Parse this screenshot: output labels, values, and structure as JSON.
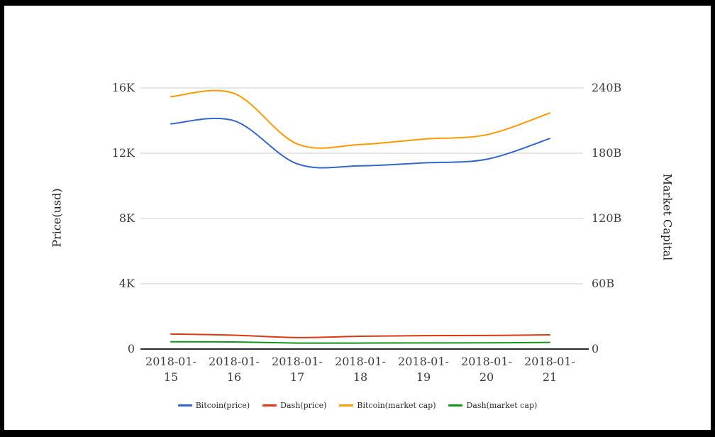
{
  "chart_data": {
    "type": "line",
    "smooth": true,
    "grid": true,
    "legend_position": "bottom",
    "x": [
      "2018-01-15",
      "2018-01-16",
      "2018-01-17",
      "2018-01-18",
      "2018-01-19",
      "2018-01-20",
      "2018-01-21"
    ],
    "left_axis": {
      "label": "Price(usd)",
      "ticks": [
        "0",
        "4K",
        "8K",
        "12K",
        "16K"
      ],
      "min": 0,
      "max": 16000
    },
    "right_axis": {
      "label": "Market Capital",
      "ticks": [
        "0",
        "60B",
        "120B",
        "180B",
        "240B"
      ],
      "min": 0,
      "max": 240
    },
    "series": [
      {
        "name": "Bitcoin(price)",
        "axis": "left",
        "color": "#3366cc",
        "values": [
          13800,
          13990,
          11350,
          11230,
          11410,
          11630,
          12900
        ]
      },
      {
        "name": "Dash(price)",
        "axis": "left",
        "color": "#dc3912",
        "values": [
          920,
          850,
          700,
          780,
          820,
          830,
          870
        ]
      },
      {
        "name": "Bitcoin(market cap)",
        "axis": "right",
        "unit": "B",
        "color": "#ff9900",
        "values": [
          232,
          235,
          188.5,
          188,
          193,
          197,
          217
        ]
      },
      {
        "name": "Dash(market cap)",
        "axis": "right",
        "unit": "B",
        "color": "#109618",
        "values": [
          6.7,
          6.5,
          5.5,
          5.5,
          5.6,
          5.7,
          6.1
        ]
      }
    ],
    "colors": {
      "gridline": "#cccccc",
      "zero_axis": "#2b2b2b",
      "tick_text": "#3d3d3d"
    }
  }
}
